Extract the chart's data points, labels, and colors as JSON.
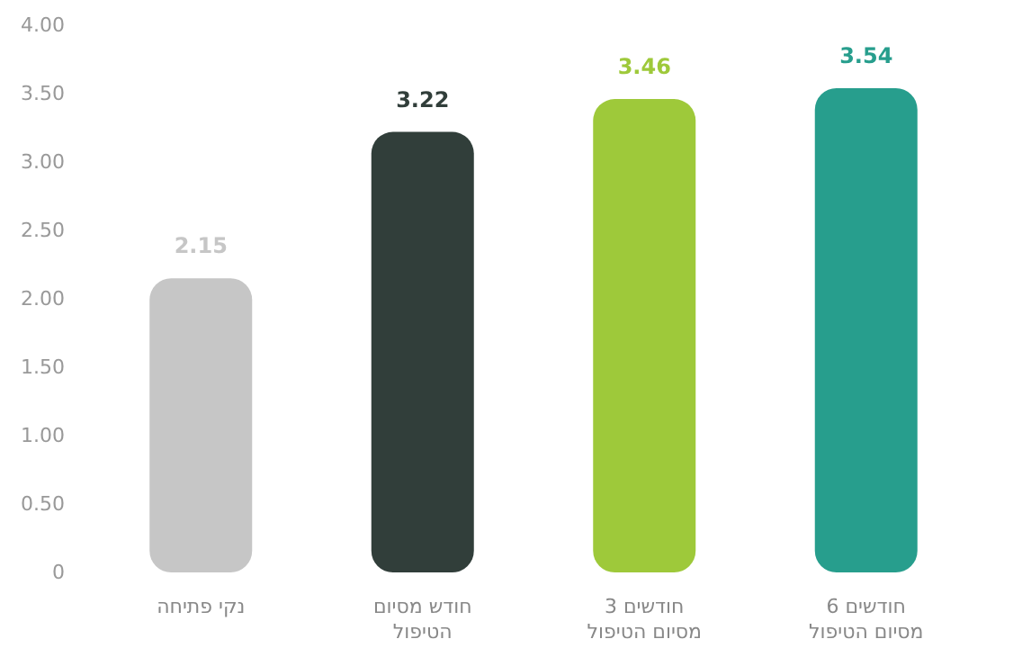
{
  "chart_data": {
    "type": "bar",
    "categories": [
      "נקי פתיחה",
      "חודש מסיום\nהטיפול",
      "3 חודשים\nמסיום הטיפול",
      "6 חודשים\nמסיום הטיפול"
    ],
    "values": [
      2.15,
      3.22,
      3.46,
      3.54
    ],
    "colors": [
      "#c6c6c6",
      "#313e3a",
      "#9ec93a",
      "#279e8d"
    ],
    "data_labels": true,
    "ylim": [
      0,
      4
    ],
    "yticks": [
      0,
      {
        "value": 0.5,
        "label": "0.50"
      },
      {
        "value": 1,
        "label": "1.00"
      },
      {
        "value": 1.5,
        "label": "1.50"
      },
      {
        "value": 2,
        "label": "2.00"
      },
      {
        "value": 2.5,
        "label": "2.50"
      },
      {
        "value": 3,
        "label": "3.00"
      },
      {
        "value": 3.5,
        "label": "3.50"
      },
      {
        "value": 4,
        "label": "4.00"
      }
    ],
    "grid": false
  }
}
